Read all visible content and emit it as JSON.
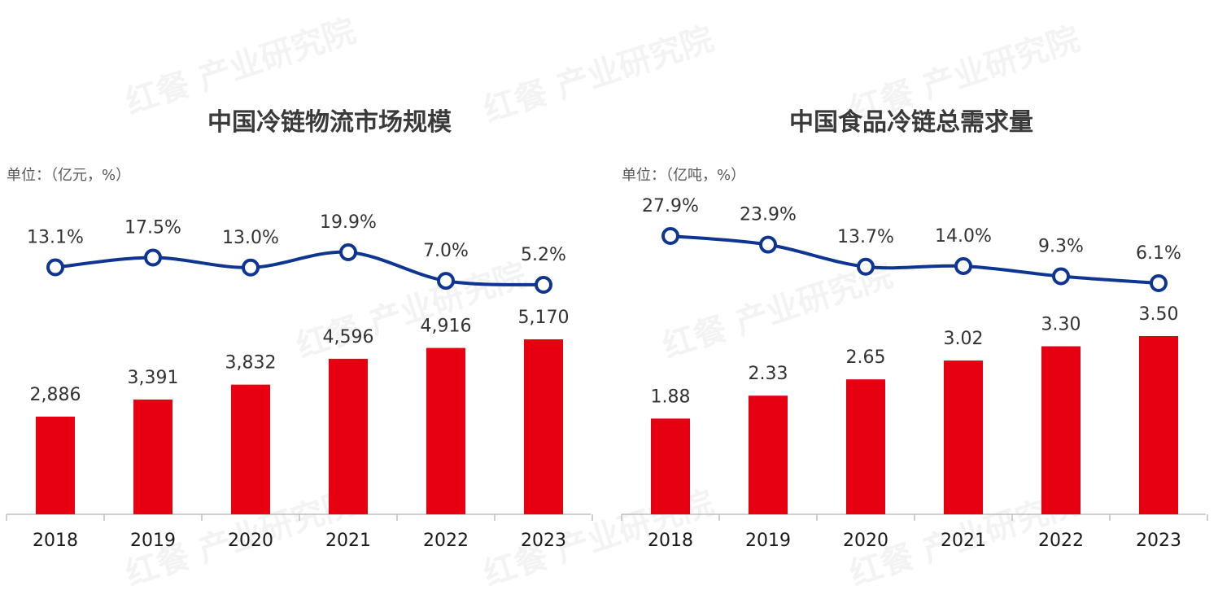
{
  "colors": {
    "bar": "#e60012",
    "line": "#0d3591",
    "marker_fill": "#ffffff",
    "axis": "#bfbfbf"
  },
  "watermark": "红餐 产业研究院",
  "chart_data": [
    {
      "type": "bar",
      "title": "中国冷链物流市场规模",
      "unit": "单位：（亿元，%）",
      "categories": [
        "2018",
        "2019",
        "2020",
        "2021",
        "2022",
        "2023"
      ],
      "series": [
        {
          "type": "bar",
          "values": [
            2886,
            3391,
            3832,
            4596,
            4916,
            5170
          ],
          "labels": [
            "2,886",
            "3,391",
            "3,832",
            "4,596",
            "4,916",
            "5,170"
          ]
        },
        {
          "type": "line",
          "values": [
            13.1,
            17.5,
            13.0,
            19.9,
            7.0,
            5.2
          ],
          "labels": [
            "13.1%",
            "17.5%",
            "13.0%",
            "19.9%",
            "7.0%",
            "5.2%"
          ]
        }
      ],
      "bar_ylim": [
        0,
        5170
      ],
      "line_ylim": [
        5.2,
        19.9
      ],
      "grid": false,
      "legend": "none"
    },
    {
      "type": "bar",
      "title": "中国食品冷链总需求量",
      "unit": "单位：（亿吨，%）",
      "categories": [
        "2018",
        "2019",
        "2020",
        "2021",
        "2022",
        "2023"
      ],
      "series": [
        {
          "type": "bar",
          "values": [
            1.88,
            2.33,
            2.65,
            3.02,
            3.3,
            3.5
          ],
          "labels": [
            "1.88",
            "2.33",
            "2.65",
            "3.02",
            "3.30",
            "3.50"
          ]
        },
        {
          "type": "line",
          "values": [
            27.9,
            23.9,
            13.7,
            14.0,
            9.3,
            6.1
          ],
          "labels": [
            "27.9%",
            "23.9%",
            "13.7%",
            "14.0%",
            "9.3%",
            "6.1%"
          ]
        }
      ],
      "bar_ylim": [
        0,
        3.5
      ],
      "line_ylim": [
        6.1,
        27.9
      ],
      "grid": false,
      "legend": "none"
    }
  ]
}
